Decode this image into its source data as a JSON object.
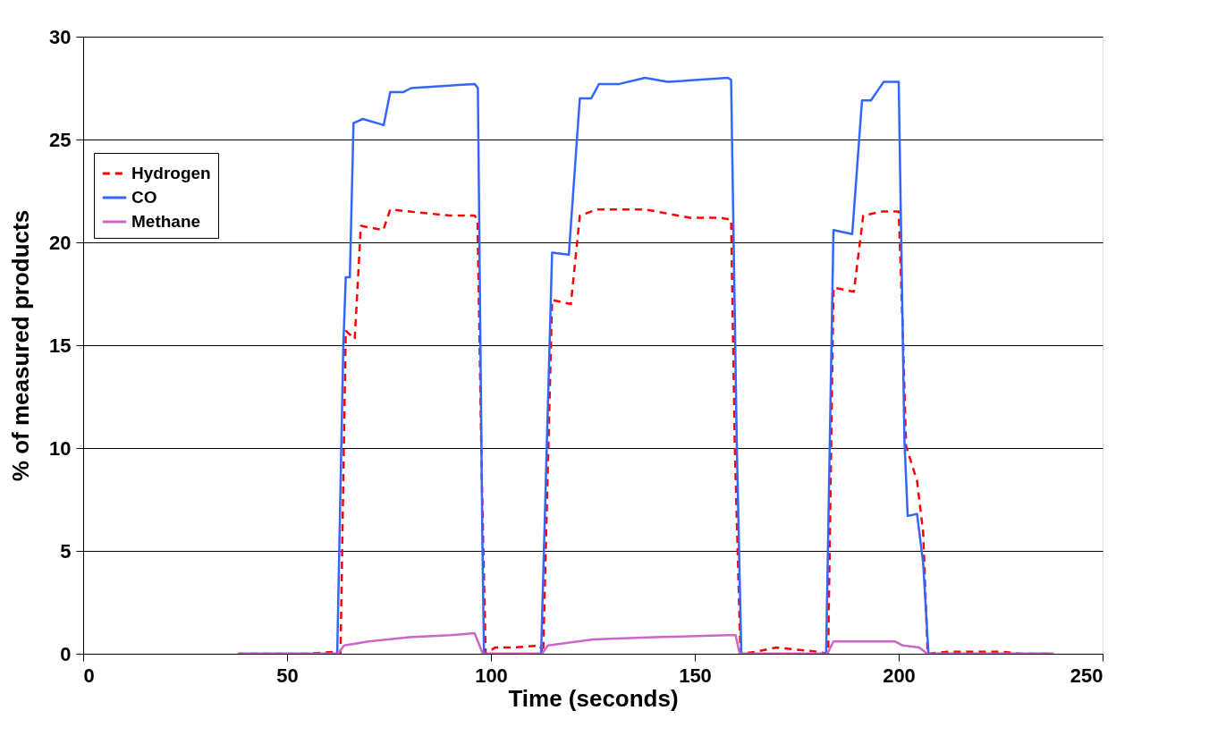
{
  "chart_data": {
    "type": "line",
    "xlabel": "Time (seconds)",
    "ylabel": "% of measured products",
    "xlim": [
      0,
      250
    ],
    "xticks": [
      0,
      50,
      100,
      150,
      200,
      250
    ],
    "ylim": [
      0,
      30
    ],
    "yticks": [
      0,
      5,
      10,
      15,
      20,
      25,
      30
    ],
    "grid": "y",
    "legend": "top left",
    "marker": "none",
    "series": [
      {
        "name": "Hydrogen",
        "color": "#ff0000",
        "line_style": "dashed",
        "x": [
          38,
          55,
          62,
          63.1,
          64.4,
          66.6,
          68.1,
          73.6,
          75.3,
          80,
          90,
          96,
          96.7,
          97.8,
          98.7,
          101,
          105,
          112,
          112.8,
          115,
          119.6,
          121.8,
          126,
          137.8,
          148.8,
          156.1,
          158.9,
          159.8,
          161.2,
          165,
          170,
          175,
          180,
          182.7,
          184,
          189,
          191.3,
          196,
          200,
          201,
          201.8,
          204.5,
          206,
          207.1,
          212,
          218,
          225,
          230,
          238
        ],
        "values": [
          0,
          0,
          0.1,
          0,
          15.7,
          15.3,
          20.8,
          20.6,
          21.6,
          21.5,
          21.3,
          21.3,
          21.1,
          8.2,
          0,
          0.3,
          0.3,
          0.4,
          0,
          17.2,
          17,
          21.3,
          21.6,
          21.6,
          21.2,
          21.2,
          21.1,
          10.1,
          0,
          0.1,
          0.3,
          0.2,
          0.1,
          0,
          17.8,
          17.6,
          21.3,
          21.5,
          21.5,
          15.7,
          10.1,
          8.4,
          5.9,
          0,
          0.1,
          0.1,
          0.1,
          0,
          0
        ]
      },
      {
        "name": "CO",
        "color": "#3366ff",
        "line_style": "solid",
        "x": [
          38,
          62.3,
          63.8,
          64.4,
          65.4,
          66.3,
          68.6,
          73.7,
          75.3,
          78.5,
          80.4,
          96,
          96.8,
          97.9,
          98.3,
          112.3,
          115,
          119.1,
          121.8,
          124.6,
          126.5,
          131.5,
          137.8,
          143.3,
          158.1,
          158.9,
          160.3,
          161.4,
          182.2,
          184,
          188.6,
          191,
          193.2,
          196.3,
          200,
          201.4,
          202.2,
          204.5,
          206,
          207.3,
          238
        ],
        "values": [
          0,
          0,
          15,
          18.3,
          18.3,
          25.8,
          26,
          25.7,
          27.3,
          27.3,
          27.5,
          27.7,
          27.5,
          5.5,
          0,
          0,
          19.5,
          19.4,
          27,
          27,
          27.7,
          27.7,
          28,
          27.8,
          28,
          27.9,
          10.1,
          0,
          0,
          20.6,
          20.4,
          26.9,
          26.9,
          27.8,
          27.8,
          10.4,
          6.7,
          6.8,
          4.4,
          0,
          0
        ]
      },
      {
        "name": "Methane",
        "color": "#cc66cc",
        "line_style": "solid",
        "x": [
          38,
          62.5,
          64,
          70,
          80,
          90,
          96,
          98,
          112.5,
          114,
          125,
          140,
          158,
          160,
          161,
          182.5,
          184,
          199,
          201,
          205,
          207,
          238
        ],
        "values": [
          0,
          0,
          0.4,
          0.6,
          0.8,
          0.9,
          1,
          0,
          0,
          0.4,
          0.7,
          0.8,
          0.9,
          0.9,
          0,
          0,
          0.6,
          0.6,
          0.4,
          0.3,
          0,
          0
        ]
      }
    ]
  }
}
